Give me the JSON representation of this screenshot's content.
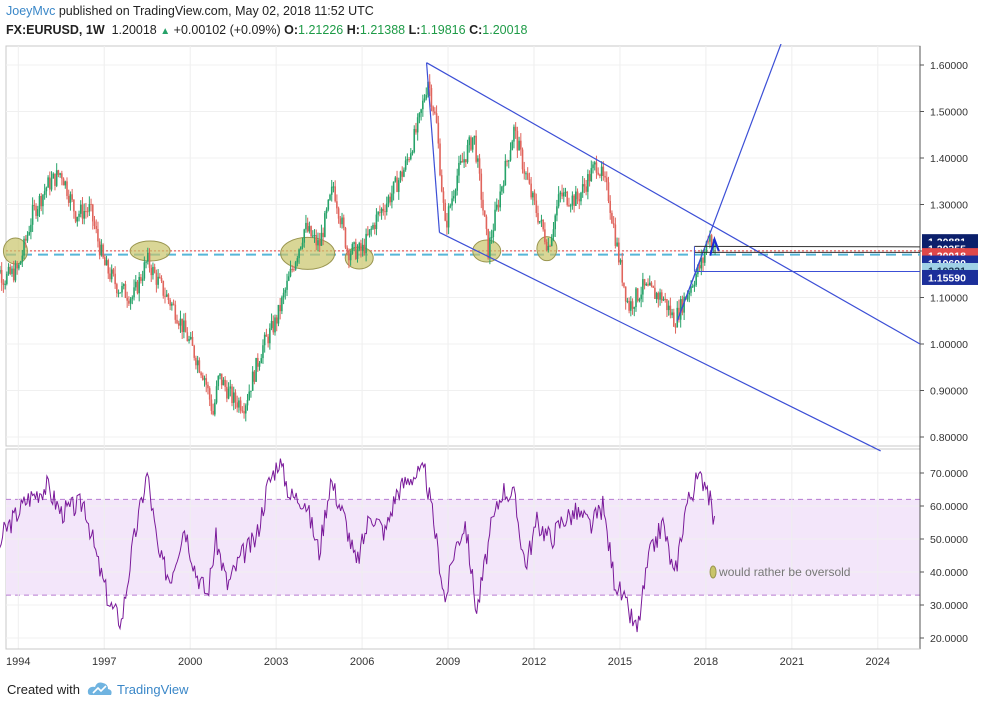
{
  "header": {
    "author": "JoeyMvc",
    "published_text": "published on TradingView.com, May 02, 2018 11:52 UTC",
    "symbol": "FX:EURUSD, 1W",
    "last": "1.20018",
    "change": "+0.00102 (+0.09%)",
    "o_label": "O:",
    "o_value": "1.21226",
    "h_label": "H:",
    "h_value": "1.21388",
    "l_label": "L:",
    "l_value": "1.19816",
    "c_label": "C:",
    "c_value": "1.20018"
  },
  "footer": {
    "created_with": "Created with",
    "brand": "TradingView"
  },
  "colors": {
    "candle_up": "#26a269",
    "candle_down": "#e0645c",
    "trendline": "#3c4fd6",
    "ellipse": "#c9c46a",
    "rsi_line": "#7a1a9a",
    "rsi_band": "#f3e6fa",
    "dashed_level": "#58b6d8",
    "price_line": "#e23636"
  },
  "chart_data": [
    {
      "type": "line",
      "title": "FX:EURUSD, 1W",
      "yscale": "linear",
      "ylim": [
        0.78,
        1.65
      ],
      "x_ticks": [
        "1994",
        "1997",
        "2000",
        "2003",
        "2006",
        "2009",
        "2012",
        "2015",
        "2018",
        "2021",
        "2024"
      ],
      "y_ticks": [
        "1.60000",
        "1.50000",
        "1.40000",
        "1.30000",
        "1.20000",
        "1.10000",
        "1.00000",
        "0.90000",
        "0.80000"
      ],
      "series": [
        {
          "x": [
            1993.0,
            1993.5,
            1994.0,
            1994.5,
            1995.0,
            1995.5,
            1996.0,
            1996.5,
            1997.0,
            1997.5,
            1998.0,
            1998.5,
            1999.0,
            1999.5,
            2000.0,
            2000.5,
            2000.8,
            2001.0,
            2001.5,
            2001.9,
            2002.5,
            2003.0,
            2003.5,
            2004.0,
            2004.5,
            2005.0,
            2005.5,
            2006.0,
            2006.5,
            2007.0,
            2007.5,
            2008.0,
            2008.3,
            2008.6,
            2008.9,
            2009.3,
            2009.9,
            2010.4,
            2010.9,
            2011.3,
            2011.9,
            2012.5,
            2012.9,
            2013.5,
            2014.2,
            2014.6,
            2015.0,
            2015.3,
            2015.8,
            2016.5,
            2016.9,
            2017.5,
            2017.9,
            2018.1,
            2018.33
          ],
          "values": [
            1.2,
            1.14,
            1.16,
            1.28,
            1.34,
            1.37,
            1.28,
            1.29,
            1.17,
            1.12,
            1.1,
            1.18,
            1.12,
            1.07,
            1.0,
            0.93,
            0.85,
            0.93,
            0.88,
            0.87,
            0.99,
            1.05,
            1.15,
            1.25,
            1.21,
            1.34,
            1.2,
            1.2,
            1.27,
            1.32,
            1.38,
            1.48,
            1.57,
            1.47,
            1.25,
            1.36,
            1.45,
            1.2,
            1.35,
            1.46,
            1.32,
            1.21,
            1.32,
            1.31,
            1.39,
            1.32,
            1.17,
            1.08,
            1.12,
            1.1,
            1.05,
            1.13,
            1.18,
            1.24,
            1.2
          ]
        }
      ],
      "annotations": {
        "price_labels": [
          "1.20881",
          "1.20355",
          "1.20018",
          "1.19690",
          "1.19231",
          "1.15590"
        ]
      }
    },
    {
      "type": "line",
      "ylim": [
        18,
        76
      ],
      "y_ticks": [
        "70.0000",
        "60.0000",
        "50.0000",
        "40.0000",
        "30.0000",
        "20.0000"
      ],
      "band": [
        33,
        62
      ],
      "series": [
        {
          "x": [
            1993.0,
            1993.5,
            1994.3,
            1995.0,
            1995.5,
            1996.3,
            1996.8,
            1997.2,
            1997.6,
            1998.0,
            1998.5,
            1998.9,
            1999.3,
            1999.8,
            2000.2,
            2000.6,
            2000.9,
            2001.3,
            2001.8,
            2002.3,
            2002.7,
            2003.1,
            2003.5,
            2004.0,
            2004.5,
            2004.9,
            2005.4,
            2005.8,
            2006.3,
            2006.8,
            2007.2,
            2007.7,
            2008.2,
            2008.5,
            2008.9,
            2009.2,
            2009.6,
            2010.0,
            2010.5,
            2010.9,
            2011.3,
            2011.7,
            2012.1,
            2012.6,
            2013.0,
            2013.5,
            2014.0,
            2014.4,
            2014.8,
            2015.1,
            2015.6,
            2016.0,
            2016.5,
            2016.9,
            2017.3,
            2017.7,
            2018.0,
            2018.33
          ],
          "values": [
            38,
            52,
            62,
            66,
            58,
            61,
            42,
            30,
            25,
            48,
            70,
            45,
            38,
            54,
            40,
            33,
            50,
            36,
            45,
            50,
            66,
            74,
            63,
            62,
            46,
            68,
            56,
            42,
            58,
            52,
            64,
            69,
            70,
            55,
            31,
            46,
            55,
            28,
            53,
            65,
            63,
            42,
            55,
            50,
            56,
            58,
            54,
            60,
            38,
            32,
            22,
            44,
            55,
            38,
            60,
            68,
            68,
            53
          ]
        }
      ],
      "annotations": {
        "note": "would rather be oversold"
      }
    }
  ]
}
